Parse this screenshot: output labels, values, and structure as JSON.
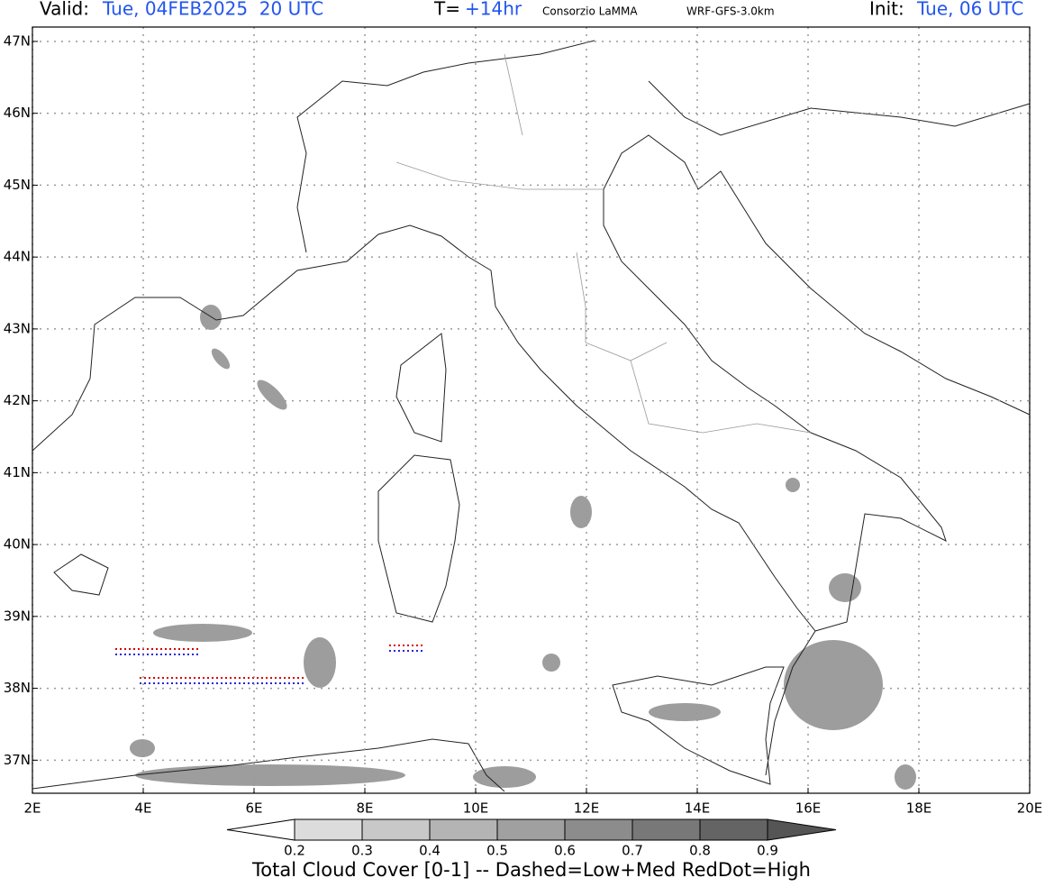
{
  "header": {
    "valid_label": "Valid:",
    "valid_time": "Tue, 04FEB2025  20 UTC",
    "t_label": "T=",
    "t_value": "+14hr",
    "center": "Consorzio LaMMA",
    "model": "WRF-GFS-3.0km",
    "init_label": "Init:",
    "init_time": "Tue, 06 UTC"
  },
  "map": {
    "lonlim": [
      2,
      20
    ],
    "latlim": [
      36.54,
      47.2
    ],
    "grid": true,
    "lon_ticks": [
      {
        "value": 2,
        "label": "2E"
      },
      {
        "value": 4,
        "label": "4E"
      },
      {
        "value": 6,
        "label": "6E"
      },
      {
        "value": 8,
        "label": "8E"
      },
      {
        "value": 10,
        "label": "10E"
      },
      {
        "value": 12,
        "label": "12E"
      },
      {
        "value": 14,
        "label": "14E"
      },
      {
        "value": 16,
        "label": "16E"
      },
      {
        "value": 18,
        "label": "18E"
      },
      {
        "value": 20,
        "label": "20E"
      }
    ],
    "lat_ticks": [
      {
        "value": 37,
        "label": "37N"
      },
      {
        "value": 38,
        "label": "38N"
      },
      {
        "value": 39,
        "label": "39N"
      },
      {
        "value": 40,
        "label": "40N"
      },
      {
        "value": 41,
        "label": "41N"
      },
      {
        "value": 42,
        "label": "42N"
      },
      {
        "value": 43,
        "label": "43N"
      },
      {
        "value": 44,
        "label": "44N"
      },
      {
        "value": 45,
        "label": "45N"
      },
      {
        "value": 46,
        "label": "46N"
      },
      {
        "value": 47,
        "label": "47N"
      }
    ]
  },
  "colorbar": {
    "levels": [
      0.2,
      0.3,
      0.4,
      0.5,
      0.6,
      0.7,
      0.8,
      0.9
    ],
    "colors": [
      "#ffffff",
      "#dcdcdc",
      "#c8c8c8",
      "#b4b4b4",
      "#a0a0a0",
      "#8c8c8c",
      "#787878",
      "#646464",
      "#555555"
    ],
    "caption": "Total Cloud Cover [0-1] -- Dashed=Low+Med RedDot=High"
  }
}
